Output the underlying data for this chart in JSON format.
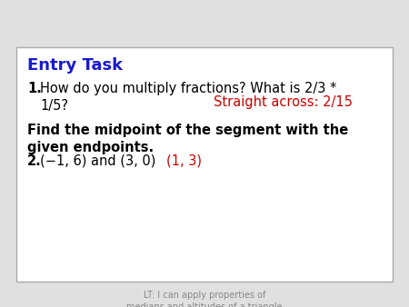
{
  "bg_color": "#e0e0e0",
  "box_bg": "#ffffff",
  "box_edge": "#aaaaaa",
  "title": "Entry Task",
  "title_color": "#1a1acc",
  "line1_answer": "Straight across: 2/15",
  "line1_answer_color": "#cc0000",
  "line3_answer": "(1, 3)",
  "line3_answer_color": "#cc0000",
  "footer": "LT: I can apply properties of\nmedians and altitudes of a triangle",
  "footer_color": "#888888",
  "footer_fontsize": 7.0,
  "title_fontsize": 13,
  "body_fontsize": 10.5
}
